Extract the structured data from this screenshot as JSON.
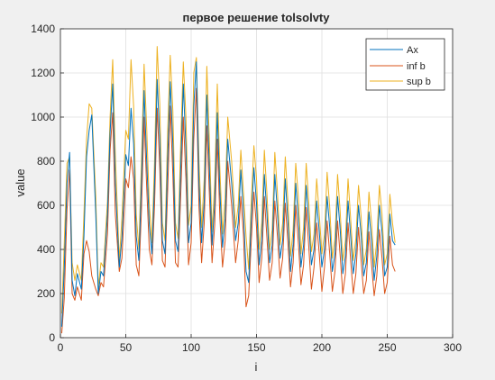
{
  "chart_data": {
    "type": "line",
    "title": "первое решение tolsolvty",
    "xlabel": "i",
    "ylabel": "value",
    "xlim": [
      0,
      300
    ],
    "ylim": [
      0,
      1400
    ],
    "xticks": [
      0,
      50,
      100,
      150,
      200,
      250,
      300
    ],
    "yticks": [
      0,
      200,
      400,
      600,
      800,
      1000,
      1200,
      1400
    ],
    "xtick_labels": [
      "0",
      "50",
      "100",
      "150",
      "200",
      "250",
      "300"
    ],
    "ytick_labels": [
      "0",
      "200",
      "400",
      "600",
      "800",
      "1000",
      "1200",
      "1400"
    ],
    "grid": true,
    "legend_position": "top-right",
    "series": [
      {
        "name": "Ax",
        "color": "#0072BD",
        "x": [
          1,
          3,
          5,
          7,
          9,
          11,
          13,
          16,
          18,
          20,
          22,
          24,
          27,
          29,
          31,
          33,
          36,
          38,
          40,
          42,
          45,
          47,
          50,
          52,
          54,
          56,
          58,
          60,
          62,
          64,
          66,
          68,
          70,
          72,
          74,
          76,
          78,
          80,
          82,
          84,
          86,
          88,
          90,
          92,
          94,
          96,
          98,
          100,
          102,
          104,
          106,
          108,
          110,
          112,
          114,
          116,
          118,
          120,
          122,
          124,
          126,
          128,
          131,
          134,
          136,
          138,
          140,
          142,
          144,
          146,
          148,
          150,
          152,
          154,
          156,
          158,
          160,
          162,
          164,
          166,
          168,
          170,
          172,
          174,
          176,
          178,
          180,
          182,
          184,
          186,
          188,
          190,
          192,
          194,
          196,
          198,
          200,
          202,
          204,
          206,
          208,
          210,
          212,
          214,
          216,
          218,
          220,
          222,
          224,
          226,
          228,
          230,
          232,
          234,
          236,
          238,
          240,
          242,
          244,
          246,
          248,
          250,
          252,
          254,
          256
        ],
        "y": [
          50,
          320,
          700,
          840,
          260,
          190,
          290,
          220,
          460,
          820,
          940,
          1010,
          560,
          200,
          300,
          280,
          560,
          930,
          1150,
          700,
          320,
          450,
          830,
          780,
          1040,
          880,
          460,
          350,
          700,
          1120,
          800,
          510,
          380,
          700,
          1170,
          900,
          440,
          380,
          800,
          1160,
          880,
          440,
          390,
          760,
          1150,
          860,
          430,
          520,
          1050,
          1250,
          700,
          430,
          620,
          1100,
          760,
          420,
          610,
          1020,
          660,
          410,
          540,
          900,
          700,
          440,
          520,
          760,
          570,
          300,
          250,
          540,
          770,
          610,
          330,
          440,
          740,
          560,
          340,
          420,
          740,
          570,
          360,
          440,
          720,
          530,
          300,
          420,
          700,
          540,
          320,
          420,
          690,
          520,
          330,
          400,
          620,
          480,
          320,
          400,
          640,
          500,
          300,
          380,
          640,
          490,
          290,
          370,
          620,
          460,
          290,
          380,
          600,
          470,
          280,
          340,
          570,
          440,
          260,
          370,
          600,
          480,
          280,
          320,
          560,
          440,
          420
        ]
      },
      {
        "name": "inf b",
        "color": "#D95319",
        "x": [
          1,
          3,
          5,
          7,
          9,
          11,
          13,
          16,
          18,
          20,
          22,
          24,
          27,
          29,
          31,
          33,
          36,
          38,
          40,
          42,
          45,
          47,
          50,
          52,
          54,
          56,
          58,
          60,
          62,
          64,
          66,
          68,
          70,
          72,
          74,
          76,
          78,
          80,
          82,
          84,
          86,
          88,
          90,
          92,
          94,
          96,
          98,
          100,
          102,
          104,
          106,
          108,
          110,
          112,
          114,
          116,
          118,
          120,
          122,
          124,
          126,
          128,
          131,
          134,
          136,
          138,
          140,
          142,
          144,
          146,
          148,
          150,
          152,
          154,
          156,
          158,
          160,
          162,
          164,
          166,
          168,
          170,
          172,
          174,
          176,
          178,
          180,
          182,
          184,
          186,
          188,
          190,
          192,
          194,
          196,
          198,
          200,
          202,
          204,
          206,
          208,
          210,
          212,
          214,
          216,
          218,
          220,
          222,
          224,
          226,
          228,
          230,
          232,
          234,
          236,
          238,
          240,
          242,
          244,
          246,
          248,
          250,
          252,
          254,
          256
        ],
        "y": [
          20,
          180,
          580,
          760,
          200,
          170,
          230,
          170,
          380,
          440,
          390,
          280,
          220,
          190,
          250,
          230,
          470,
          850,
          1020,
          560,
          300,
          360,
          720,
          680,
          820,
          720,
          330,
          280,
          580,
          1000,
          680,
          400,
          330,
          600,
          1040,
          770,
          350,
          320,
          660,
          1050,
          740,
          340,
          320,
          640,
          1000,
          720,
          330,
          430,
          900,
          1130,
          590,
          340,
          520,
          960,
          640,
          340,
          510,
          900,
          540,
          320,
          440,
          800,
          600,
          340,
          440,
          640,
          470,
          140,
          190,
          440,
          660,
          500,
          250,
          360,
          640,
          450,
          260,
          340,
          620,
          460,
          270,
          360,
          610,
          430,
          230,
          340,
          600,
          430,
          240,
          330,
          590,
          410,
          220,
          320,
          520,
          380,
          210,
          320,
          530,
          380,
          210,
          300,
          530,
          370,
          200,
          290,
          520,
          350,
          200,
          290,
          500,
          350,
          200,
          260,
          480,
          330,
          190,
          280,
          490,
          360,
          200,
          250,
          460,
          330,
          300
        ]
      },
      {
        "name": "sup b",
        "color": "#EDB120",
        "x": [
          1,
          3,
          5,
          7,
          9,
          11,
          13,
          16,
          18,
          20,
          22,
          24,
          27,
          29,
          31,
          33,
          36,
          38,
          40,
          42,
          45,
          47,
          50,
          52,
          54,
          56,
          58,
          60,
          62,
          64,
          66,
          68,
          70,
          72,
          74,
          76,
          78,
          80,
          82,
          84,
          86,
          88,
          90,
          92,
          94,
          96,
          98,
          100,
          102,
          104,
          106,
          108,
          110,
          112,
          114,
          116,
          118,
          120,
          122,
          124,
          126,
          128,
          131,
          134,
          136,
          138,
          140,
          142,
          144,
          146,
          148,
          150,
          152,
          154,
          156,
          158,
          160,
          162,
          164,
          166,
          168,
          170,
          172,
          174,
          176,
          178,
          180,
          182,
          184,
          186,
          188,
          190,
          192,
          194,
          196,
          198,
          200,
          202,
          204,
          206,
          208,
          210,
          212,
          214,
          216,
          218,
          220,
          222,
          224,
          226,
          228,
          230,
          232,
          234,
          236,
          238,
          240,
          242,
          244,
          246,
          248,
          250,
          252,
          254,
          256
        ],
        "y": [
          110,
          430,
          790,
          820,
          340,
          260,
          330,
          260,
          560,
          900,
          1060,
          1040,
          640,
          230,
          340,
          320,
          620,
          1000,
          1260,
          830,
          350,
          540,
          940,
          900,
          1260,
          1050,
          560,
          400,
          800,
          1240,
          950,
          600,
          430,
          800,
          1320,
          1060,
          520,
          440,
          930,
          1280,
          1030,
          520,
          450,
          880,
          1250,
          1000,
          510,
          600,
          1200,
          1270,
          800,
          500,
          720,
          1230,
          880,
          480,
          700,
          1150,
          760,
          470,
          630,
          1000,
          800,
          500,
          600,
          850,
          660,
          460,
          310,
          620,
          870,
          720,
          400,
          520,
          850,
          650,
          400,
          490,
          840,
          660,
          420,
          520,
          820,
          620,
          370,
          490,
          790,
          640,
          380,
          500,
          790,
          610,
          390,
          470,
          720,
          560,
          380,
          470,
          750,
          590,
          360,
          450,
          740,
          570,
          350,
          440,
          720,
          540,
          350,
          450,
          690,
          550,
          330,
          400,
          660,
          520,
          320,
          440,
          690,
          560,
          330,
          380,
          650,
          520,
          430
        ]
      }
    ]
  }
}
